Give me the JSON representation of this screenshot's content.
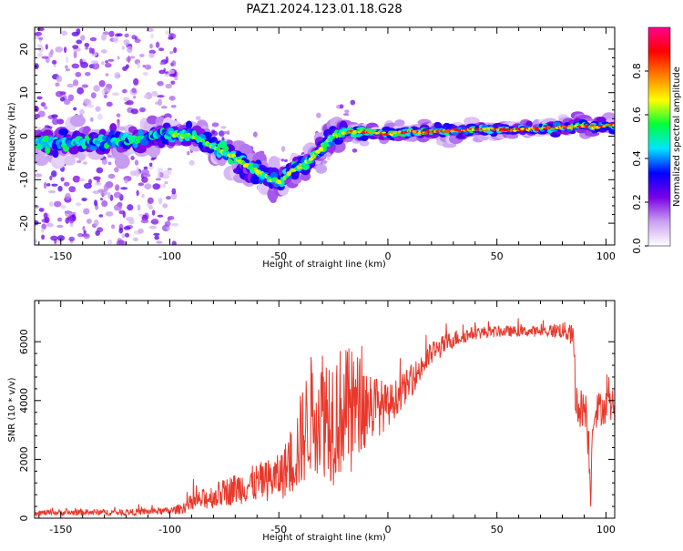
{
  "title": "PAZ1.2024.123.01.18.G28",
  "chart_data": [
    {
      "type": "heatmap",
      "name": "spectrogram",
      "xlabel": "Height of straight line (km)",
      "ylabel": "Frequency (Hz)",
      "xlim": [
        -162,
        104
      ],
      "ylim": [
        -25,
        25
      ],
      "xticks": [
        -150,
        -100,
        -50,
        0,
        50,
        100
      ],
      "yticks": [
        -20,
        -10,
        0,
        10,
        20
      ],
      "colorbar": {
        "label": "Normalized spectral amplitude",
        "range": [
          0,
          1
        ],
        "ticks": [
          0.0,
          0.2,
          0.4,
          0.6,
          0.8
        ],
        "colormap": [
          "#ffffff",
          "#c9a0f0",
          "#7a00e6",
          "#0000ff",
          "#00e5ff",
          "#00ff3a",
          "#ffff00",
          "#ff8000",
          "#ff0000",
          "#ff0090"
        ]
      },
      "ridge": {
        "x": [
          -162,
          -140,
          -120,
          -100,
          -90,
          -80,
          -70,
          -60,
          -55,
          -50,
          -45,
          -40,
          -35,
          -30,
          -25,
          -20,
          -10,
          0,
          10,
          20,
          40,
          60,
          80,
          90,
          95,
          100,
          104
        ],
        "y": [
          -1.5,
          -1.5,
          -1.0,
          0.5,
          0.0,
          -2.5,
          -5.0,
          -8.0,
          -9.5,
          -10.5,
          -8.5,
          -7.0,
          -5.0,
          -2.5,
          0.0,
          1.0,
          1.0,
          0.5,
          1.0,
          1.0,
          1.5,
          1.5,
          2.0,
          2.5,
          2.0,
          2.5,
          2.5
        ]
      }
    },
    {
      "type": "line",
      "name": "snr",
      "xlabel": "Height of straight line (km)",
      "ylabel": "SNR (10 * v/v)",
      "xlim": [
        -162,
        104
      ],
      "ylim": [
        0,
        7400
      ],
      "xticks": [
        -150,
        -100,
        -50,
        0,
        50,
        100
      ],
      "yticks": [
        0,
        2000,
        4000,
        6000
      ],
      "color": "#e8392c",
      "envelope": {
        "x": [
          -162,
          -140,
          -120,
          -100,
          -95,
          -90,
          -80,
          -70,
          -60,
          -50,
          -45,
          -40,
          -35,
          -30,
          -25,
          -20,
          -15,
          -10,
          -5,
          0,
          5,
          10,
          20,
          30,
          40,
          50,
          60,
          70,
          80,
          85,
          86,
          88,
          90,
          92,
          93,
          94,
          96,
          100,
          104
        ],
        "mean": [
          180,
          200,
          200,
          250,
          320,
          520,
          750,
          1000,
          1200,
          1400,
          1800,
          2600,
          3600,
          3700,
          3500,
          3700,
          3800,
          3900,
          3800,
          3800,
          4200,
          4600,
          5600,
          6100,
          6300,
          6350,
          6350,
          6350,
          6400,
          6200,
          4000,
          3700,
          3800,
          2600,
          800,
          3500,
          3700,
          3800,
          3800
        ],
        "noise": [
          80,
          90,
          90,
          100,
          150,
          250,
          350,
          450,
          550,
          650,
          900,
          1400,
          1700,
          1900,
          2000,
          1800,
          1600,
          1200,
          900,
          600,
          500,
          450,
          350,
          250,
          180,
          160,
          150,
          150,
          250,
          300,
          700,
          600,
          500,
          600,
          400,
          500,
          500,
          500,
          500
        ]
      }
    }
  ]
}
